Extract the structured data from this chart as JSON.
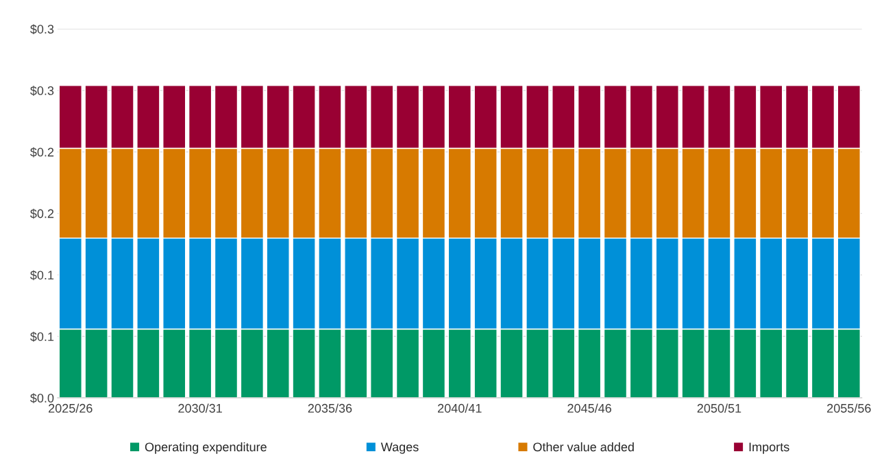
{
  "chart_data": {
    "type": "bar",
    "stacked": true,
    "categories": [
      "2025/26",
      null,
      null,
      null,
      null,
      "2030/31",
      null,
      null,
      null,
      null,
      "2035/36",
      null,
      null,
      null,
      null,
      "2040/41",
      null,
      null,
      null,
      null,
      "2045/46",
      null,
      null,
      null,
      null,
      "2050/51",
      null,
      null,
      null,
      null,
      "2055/56"
    ],
    "series": [
      {
        "name": "Operating expenditure",
        "color": "#009966",
        "values": [
          0.056,
          0.056,
          0.056,
          0.056,
          0.056,
          0.056,
          0.056,
          0.056,
          0.056,
          0.056,
          0.056,
          0.056,
          0.056,
          0.056,
          0.056,
          0.056,
          0.056,
          0.056,
          0.056,
          0.056,
          0.056,
          0.056,
          0.056,
          0.056,
          0.056,
          0.056,
          0.056,
          0.056,
          0.056,
          0.056,
          0.056
        ]
      },
      {
        "name": "Wages",
        "color": "#0090d8",
        "values": [
          0.074,
          0.074,
          0.074,
          0.074,
          0.074,
          0.074,
          0.074,
          0.074,
          0.074,
          0.074,
          0.074,
          0.074,
          0.074,
          0.074,
          0.074,
          0.074,
          0.074,
          0.074,
          0.074,
          0.074,
          0.074,
          0.074,
          0.074,
          0.074,
          0.074,
          0.074,
          0.074,
          0.074,
          0.074,
          0.074,
          0.074
        ]
      },
      {
        "name": "Other value added",
        "color": "#d77a00",
        "values": [
          0.073,
          0.073,
          0.073,
          0.073,
          0.073,
          0.073,
          0.073,
          0.073,
          0.073,
          0.073,
          0.073,
          0.073,
          0.073,
          0.073,
          0.073,
          0.073,
          0.073,
          0.073,
          0.073,
          0.073,
          0.073,
          0.073,
          0.073,
          0.073,
          0.073,
          0.073,
          0.073,
          0.073,
          0.073,
          0.073,
          0.073
        ]
      },
      {
        "name": "Imports",
        "color": "#990033",
        "values": [
          0.051,
          0.051,
          0.051,
          0.051,
          0.051,
          0.051,
          0.051,
          0.051,
          0.051,
          0.051,
          0.051,
          0.051,
          0.051,
          0.051,
          0.051,
          0.051,
          0.051,
          0.051,
          0.051,
          0.051,
          0.051,
          0.051,
          0.051,
          0.051,
          0.051,
          0.051,
          0.051,
          0.051,
          0.051,
          0.051,
          0.051
        ]
      }
    ],
    "ylim": [
      0,
      0.3
    ],
    "yticks": [
      {
        "value": 0,
        "label": "$0.0"
      },
      {
        "value": 0.05,
        "label": "$0.1"
      },
      {
        "value": 0.1,
        "label": "$0.1"
      },
      {
        "value": 0.15,
        "label": "$0.2"
      },
      {
        "value": 0.2,
        "label": "$0.2"
      },
      {
        "value": 0.25,
        "label": "$0.3"
      },
      {
        "value": 0.3,
        "label": "$0.3"
      }
    ],
    "grid": "y",
    "legend": "bottom"
  }
}
